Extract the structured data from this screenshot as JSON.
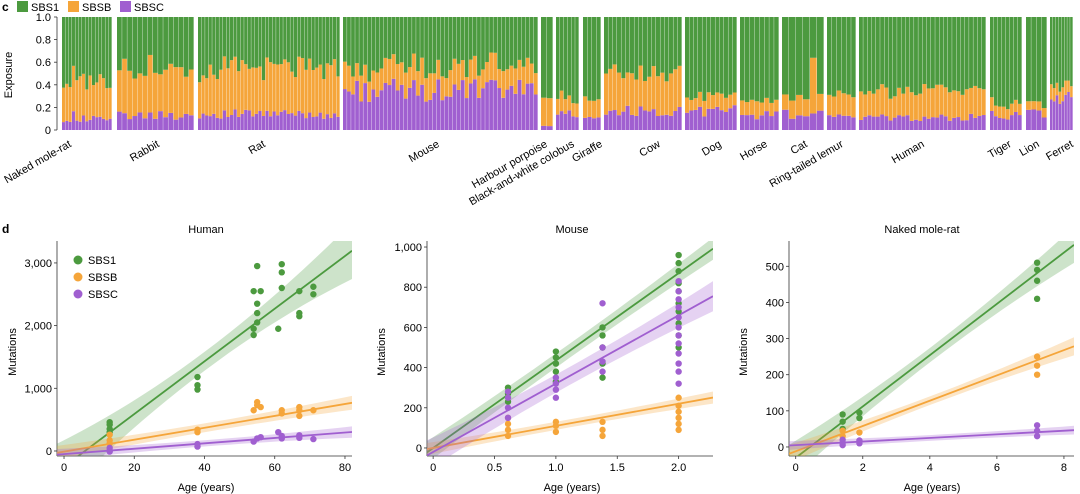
{
  "panel_c": {
    "letter": "c",
    "legend": [
      {
        "name": "SBS1",
        "color": "#4c9a3f"
      },
      {
        "name": "SBSB",
        "color": "#f5a53a"
      },
      {
        "name": "SBSC",
        "color": "#a05fd0"
      }
    ],
    "chart_data": {
      "type": "bar",
      "stacked": true,
      "ylabel": "Exposure",
      "ylim": [
        0,
        1.0
      ],
      "yticks": [
        "0",
        "0.2",
        "0.4",
        "0.6",
        "0.8",
        "1.0"
      ],
      "series_order": [
        "SBSC",
        "SBSB",
        "SBS1"
      ],
      "species": [
        {
          "name": "Naked mole-rat",
          "n": 15,
          "c": 0.1,
          "b": 0.34
        },
        {
          "name": "Rabbit",
          "n": 15,
          "c": 0.13,
          "b": 0.42
        },
        {
          "name": "Rat",
          "n": 40,
          "c": 0.14,
          "b": 0.4
        },
        {
          "name": "Mouse",
          "n": 48,
          "c": 0.35,
          "b": 0.2
        },
        {
          "name": "Harbour porpoise",
          "n": 2,
          "c": 0.04,
          "b": 0.3
        },
        {
          "name": "Black-and-white colobus",
          "n": 6,
          "c": 0.14,
          "b": 0.15
        },
        {
          "name": "Giraffe",
          "n": 4,
          "c": 0.1,
          "b": 0.16
        },
        {
          "name": "Cow",
          "n": 18,
          "c": 0.17,
          "b": 0.33
        },
        {
          "name": "Dog",
          "n": 12,
          "c": 0.17,
          "b": 0.12
        },
        {
          "name": "Horse",
          "n": 8,
          "c": 0.13,
          "b": 0.13
        },
        {
          "name": "Cat",
          "n": 6,
          "c": 0.14,
          "b": 0.15
        },
        {
          "name": "Ring-tailed lemur",
          "n": 6,
          "c": 0.11,
          "b": 0.18
        },
        {
          "name": "Human",
          "n": 30,
          "c": 0.11,
          "b": 0.24
        },
        {
          "name": "Tiger",
          "n": 8,
          "c": 0.13,
          "b": 0.1
        },
        {
          "name": "Lion",
          "n": 4,
          "c": 0.15,
          "b": 0.07
        },
        {
          "name": "Ferret",
          "n": 8,
          "c": 0.28,
          "b": 0.12
        }
      ]
    }
  },
  "panel_d": {
    "letter": "d",
    "legend": [
      {
        "name": "SBS1",
        "color": "#4c9a3f"
      },
      {
        "name": "SBSB",
        "color": "#f5a53a"
      },
      {
        "name": "SBSC",
        "color": "#a05fd0"
      }
    ],
    "chart_data": [
      {
        "type": "scatter",
        "title": "Human",
        "xlabel": "Age (years)",
        "ylabel": "Mutations",
        "xlim": [
          -2,
          82
        ],
        "ylim": [
          -80,
          3350
        ],
        "xticks": [
          0,
          20,
          40,
          60,
          80
        ],
        "xticklabels": [
          "0",
          "20",
          "40",
          "60",
          "80"
        ],
        "yticks": [
          0,
          1000,
          2000,
          3000
        ],
        "yticklabels": [
          "0",
          "1,000",
          "2,000",
          "3,000"
        ],
        "series": [
          {
            "name": "SBS1",
            "fit": [
              -250,
              42
            ],
            "band": [
              150,
              450
            ],
            "points": [
              [
                13,
                300
              ],
              [
                13,
                350
              ],
              [
                13,
                420
              ],
              [
                13,
                460
              ],
              [
                38,
                980
              ],
              [
                38,
                1050
              ],
              [
                38,
                1180
              ],
              [
                54,
                1850
              ],
              [
                54,
                1950
              ],
              [
                55,
                2050
              ],
              [
                55,
                2200
              ],
              [
                55,
                2350
              ],
              [
                54,
                2550
              ],
              [
                56,
                2550
              ],
              [
                55,
                2950
              ],
              [
                61,
                1950
              ],
              [
                62,
                2600
              ],
              [
                62,
                2850
              ],
              [
                62,
                2980
              ],
              [
                67,
                2150
              ],
              [
                67,
                2200
              ],
              [
                67,
                2550
              ],
              [
                71,
                2500
              ],
              [
                71,
                2620
              ]
            ]
          },
          {
            "name": "SBSB",
            "fit": [
              -10,
              9.5
            ],
            "band": [
              70,
              110
            ],
            "points": [
              [
                13,
                120
              ],
              [
                13,
                170
              ],
              [
                13,
                260
              ],
              [
                38,
                300
              ],
              [
                38,
                340
              ],
              [
                54,
                650
              ],
              [
                55,
                730
              ],
              [
                55,
                780
              ],
              [
                56,
                700
              ],
              [
                62,
                600
              ],
              [
                62,
                650
              ],
              [
                67,
                560
              ],
              [
                67,
                650
              ],
              [
                67,
                700
              ],
              [
                71,
                650
              ]
            ]
          },
          {
            "name": "SBSC",
            "fit": [
              -50,
              4.3
            ],
            "band": [
              50,
              90
            ],
            "points": [
              [
                13,
                -10
              ],
              [
                13,
                10
              ],
              [
                13,
                50
              ],
              [
                38,
                70
              ],
              [
                38,
                110
              ],
              [
                54,
                150
              ],
              [
                55,
                200
              ],
              [
                56,
                220
              ],
              [
                61,
                300
              ],
              [
                62,
                240
              ],
              [
                62,
                200
              ],
              [
                67,
                210
              ],
              [
                67,
                250
              ],
              [
                71,
                190
              ]
            ]
          }
        ]
      },
      {
        "type": "scatter",
        "title": "Mouse",
        "xlabel": "Age (years)",
        "ylabel": "Mutations",
        "xlim": [
          -0.05,
          2.28
        ],
        "ylim": [
          -40,
          1030
        ],
        "xticks": [
          0,
          0.5,
          1.0,
          1.5,
          2.0
        ],
        "xticklabels": [
          "0",
          "0.5",
          "1.0",
          "1.5",
          "2.0"
        ],
        "yticks": [
          0,
          200,
          400,
          600,
          800,
          1000
        ],
        "yticklabels": [
          "0",
          "200",
          "400",
          "600",
          "800",
          "1,000"
        ],
        "series": [
          {
            "name": "SBS1",
            "fit": [
              0,
              435
            ],
            "band": [
              35,
              55
            ],
            "points": [
              [
                0.61,
                230
              ],
              [
                0.61,
                270
              ],
              [
                0.61,
                300
              ],
              [
                1,
                330
              ],
              [
                1,
                380
              ],
              [
                1,
                420
              ],
              [
                1,
                450
              ],
              [
                1,
                480
              ],
              [
                1.38,
                350
              ],
              [
                1.38,
                420
              ],
              [
                1.38,
                500
              ],
              [
                1.38,
                560
              ],
              [
                1.38,
                600
              ],
              [
                2,
                500
              ],
              [
                2,
                560
              ],
              [
                2,
                620
              ],
              [
                2,
                680
              ],
              [
                2,
                720
              ],
              [
                2,
                780
              ],
              [
                2,
                820
              ],
              [
                2,
                880
              ],
              [
                2,
                920
              ],
              [
                2,
                960
              ]
            ]
          },
          {
            "name": "SBSB",
            "fit": [
              0,
              110
            ],
            "band": [
              20,
              30
            ],
            "points": [
              [
                0.61,
                60
              ],
              [
                0.61,
                90
              ],
              [
                0.61,
                120
              ],
              [
                0.61,
                150
              ],
              [
                1,
                80
              ],
              [
                1,
                110
              ],
              [
                1,
                130
              ],
              [
                1.38,
                60
              ],
              [
                1.38,
                90
              ],
              [
                1.38,
                130
              ],
              [
                2,
                90
              ],
              [
                2,
                120
              ],
              [
                2,
                150
              ],
              [
                2,
                180
              ],
              [
                2,
                210
              ],
              [
                2,
                250
              ]
            ]
          },
          {
            "name": "SBSC",
            "fit": [
              -20,
              340
            ],
            "band": [
              45,
              75
            ],
            "points": [
              [
                0.61,
                150
              ],
              [
                0.61,
                200
              ],
              [
                0.61,
                250
              ],
              [
                0.61,
                280
              ],
              [
                1,
                250
              ],
              [
                1,
                290
              ],
              [
                1,
                320
              ],
              [
                1,
                350
              ],
              [
                1.38,
                380
              ],
              [
                1.38,
                430
              ],
              [
                1.38,
                500
              ],
              [
                1.38,
                720
              ],
              [
                2,
                320
              ],
              [
                2,
                380
              ],
              [
                2,
                420
              ],
              [
                2,
                470
              ],
              [
                2,
                520
              ],
              [
                2,
                560
              ],
              [
                2,
                600
              ],
              [
                2,
                650
              ],
              [
                2,
                700
              ],
              [
                2,
                740
              ],
              [
                2,
                780
              ],
              [
                2,
                830
              ]
            ]
          }
        ]
      },
      {
        "type": "scatter",
        "title": "Naked mole-rat",
        "xlabel": "Age (years)",
        "ylabel": "Mutations",
        "xlim": [
          -0.2,
          8.3
        ],
        "ylim": [
          -25,
          570
        ],
        "xticks": [
          0,
          2,
          4,
          6,
          8
        ],
        "xticklabels": [
          "0",
          "2",
          "4",
          "6",
          "8"
        ],
        "yticks": [
          0,
          100,
          200,
          300,
          400,
          500
        ],
        "yticklabels": [
          "0",
          "100",
          "200",
          "300",
          "400",
          "500"
        ],
        "series": [
          {
            "name": "SBS1",
            "fit": [
              -30,
              71
            ],
            "band": [
              20,
              50
            ],
            "points": [
              [
                1.4,
                50
              ],
              [
                1.4,
                70
              ],
              [
                1.4,
                90
              ],
              [
                1.9,
                80
              ],
              [
                1.9,
                95
              ],
              [
                7.2,
                410
              ],
              [
                7.2,
                460
              ],
              [
                7.2,
                490
              ],
              [
                7.2,
                510
              ]
            ]
          },
          {
            "name": "SBSB",
            "fit": [
              -12,
              35
            ],
            "band": [
              12,
              25
            ],
            "points": [
              [
                1.4,
                30
              ],
              [
                1.4,
                45
              ],
              [
                1.9,
                40
              ],
              [
                7.2,
                200
              ],
              [
                7.2,
                225
              ],
              [
                7.2,
                250
              ]
            ]
          },
          {
            "name": "SBSC",
            "fit": [
              5,
              5
            ],
            "band": [
              8,
              12
            ],
            "points": [
              [
                1.4,
                5
              ],
              [
                1.4,
                12
              ],
              [
                1.4,
                20
              ],
              [
                1.9,
                10
              ],
              [
                1.9,
                18
              ],
              [
                7.2,
                30
              ],
              [
                7.2,
                45
              ],
              [
                7.2,
                60
              ]
            ]
          }
        ]
      }
    ]
  }
}
